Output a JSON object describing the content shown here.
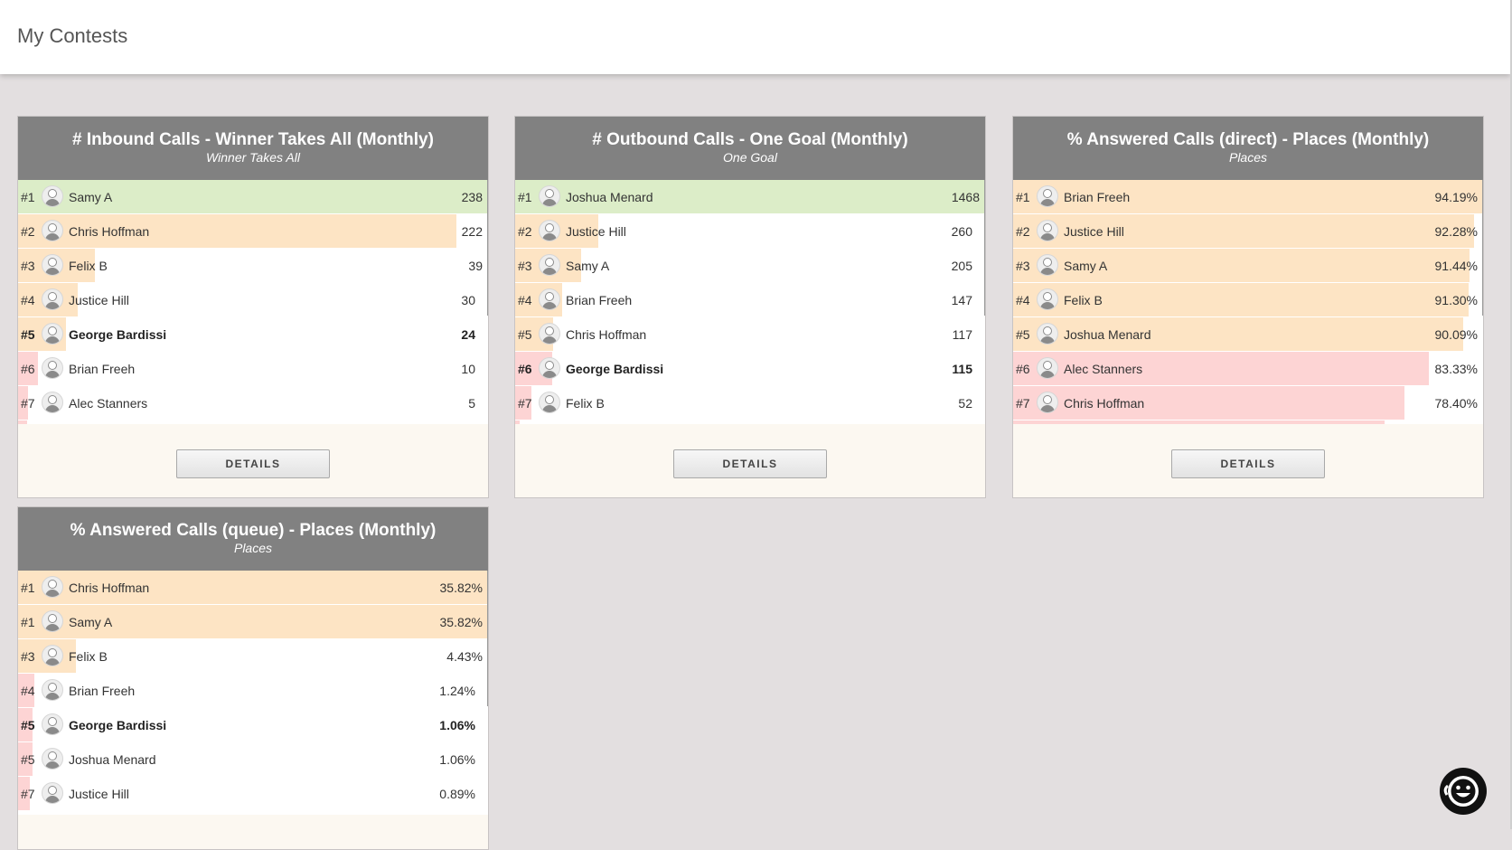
{
  "page": {
    "title": "My Contests"
  },
  "colors": {
    "header_bg": "#818181",
    "leader": "#dcedc8",
    "mid": "#fde4c4",
    "low": "#fdd4d4",
    "card_bg": "#fcf8f1",
    "page_bg": "#e3dfe0"
  },
  "button_label": "DETAILS",
  "contests": [
    {
      "title": "# Inbound Calls - Winner Takes All (Monthly)",
      "subtitle": "Winner Takes All",
      "rows": [
        {
          "rank": "#1",
          "name": "Samy A",
          "value": "238",
          "bar": 1.0,
          "tone": "leader"
        },
        {
          "rank": "#2",
          "name": "Chris Hoffman",
          "value": "222",
          "bar": 0.933,
          "tone": "mid"
        },
        {
          "rank": "#3",
          "name": "Felix B",
          "value": "39",
          "bar": 0.164,
          "tone": "mid"
        },
        {
          "rank": "#4",
          "name": "Justice Hill",
          "value": "30",
          "bar": 0.126,
          "tone": "mid"
        },
        {
          "rank": "#5",
          "name": "George Bardissi",
          "value": "24",
          "bar": 0.101,
          "tone": "mid",
          "bold": true
        },
        {
          "rank": "#6",
          "name": "Brian Freeh",
          "value": "10",
          "bar": 0.042,
          "tone": "low"
        },
        {
          "rank": "#7",
          "name": "Alec Stanners",
          "value": "5",
          "bar": 0.021,
          "tone": "low"
        },
        {
          "rank": "",
          "name": "",
          "value": "",
          "bar": 0.02,
          "tone": "low"
        }
      ]
    },
    {
      "title": "# Outbound Calls - One Goal (Monthly)",
      "subtitle": "One Goal",
      "rows": [
        {
          "rank": "#1",
          "name": "Joshua Menard",
          "value": "1468",
          "bar": 1.0,
          "tone": "leader"
        },
        {
          "rank": "#2",
          "name": "Justice Hill",
          "value": "260",
          "bar": 0.177,
          "tone": "mid"
        },
        {
          "rank": "#3",
          "name": "Samy A",
          "value": "205",
          "bar": 0.14,
          "tone": "mid"
        },
        {
          "rank": "#4",
          "name": "Brian Freeh",
          "value": "147",
          "bar": 0.1,
          "tone": "mid"
        },
        {
          "rank": "#5",
          "name": "Chris Hoffman",
          "value": "117",
          "bar": 0.08,
          "tone": "mid"
        },
        {
          "rank": "#6",
          "name": "George Bardissi",
          "value": "115",
          "bar": 0.078,
          "tone": "low",
          "bold": true
        },
        {
          "rank": "#7",
          "name": "Felix B",
          "value": "52",
          "bar": 0.035,
          "tone": "low"
        },
        {
          "rank": "",
          "name": "",
          "value": "",
          "bar": 0.01,
          "tone": "low"
        }
      ]
    },
    {
      "title": "% Answered Calls (direct) - Places (Monthly)",
      "subtitle": "Places",
      "rows": [
        {
          "rank": "#1",
          "name": "Brian Freeh",
          "value": "94.19%",
          "bar": 1.0,
          "tone": "mid"
        },
        {
          "rank": "#2",
          "name": "Justice Hill",
          "value": "92.28%",
          "bar": 0.98,
          "tone": "mid"
        },
        {
          "rank": "#3",
          "name": "Samy A",
          "value": "91.44%",
          "bar": 0.971,
          "tone": "mid"
        },
        {
          "rank": "#4",
          "name": "Felix B",
          "value": "91.30%",
          "bar": 0.969,
          "tone": "mid"
        },
        {
          "rank": "#5",
          "name": "Joshua Menard",
          "value": "90.09%",
          "bar": 0.957,
          "tone": "mid"
        },
        {
          "rank": "#6",
          "name": "Alec Stanners",
          "value": "83.33%",
          "bar": 0.885,
          "tone": "low"
        },
        {
          "rank": "#7",
          "name": "Chris Hoffman",
          "value": "78.40%",
          "bar": 0.832,
          "tone": "low"
        },
        {
          "rank": "",
          "name": "",
          "value": "",
          "bar": 0.79,
          "tone": "low"
        }
      ]
    },
    {
      "title": "% Answered Calls (queue) - Places (Monthly)",
      "subtitle": "Places",
      "rows": [
        {
          "rank": "#1",
          "name": "Chris Hoffman",
          "value": "35.82%",
          "bar": 1.0,
          "tone": "mid"
        },
        {
          "rank": "#1",
          "name": "Samy A",
          "value": "35.82%",
          "bar": 1.0,
          "tone": "mid"
        },
        {
          "rank": "#3",
          "name": "Felix B",
          "value": "4.43%",
          "bar": 0.124,
          "tone": "mid"
        },
        {
          "rank": "#4",
          "name": "Brian Freeh",
          "value": "1.24%",
          "bar": 0.035,
          "tone": "low"
        },
        {
          "rank": "#5",
          "name": "George Bardissi",
          "value": "1.06%",
          "bar": 0.03,
          "tone": "low",
          "bold": true
        },
        {
          "rank": "#5",
          "name": "Joshua Menard",
          "value": "1.06%",
          "bar": 0.03,
          "tone": "low"
        },
        {
          "rank": "#7",
          "name": "Justice Hill",
          "value": "0.89%",
          "bar": 0.025,
          "tone": "low"
        }
      ]
    }
  ],
  "chat": {
    "icon": "smiley-chat-icon"
  }
}
